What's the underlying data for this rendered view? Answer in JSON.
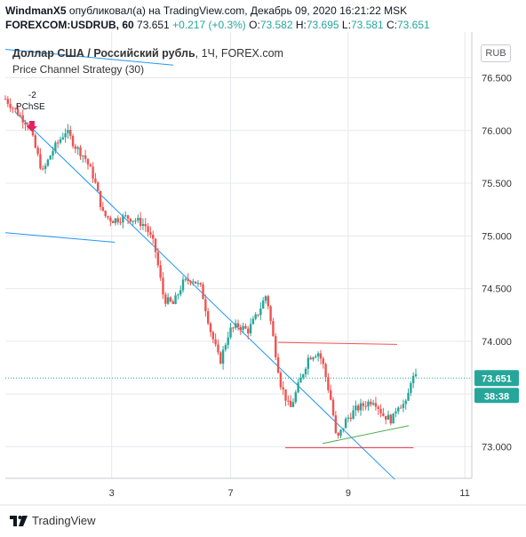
{
  "header": {
    "author": "WindmanX5",
    "published_text": "опубликовал(а) на TradingView.com, Декабрь 09, 2020 16:21:22 MSK",
    "symbol": "FOREXCOM:USDRUB, 60",
    "last": "73.651",
    "change": "+0.217 (+0.3%)",
    "o_label": "O:",
    "o_value": "73.582",
    "h_label": "H:",
    "h_value": "73.695",
    "l_label": "L:",
    "l_value": "73.581",
    "c_label": "C:",
    "c_value": "73.651"
  },
  "plot": {
    "title_bold": "Доллар США / Российский рубль",
    "title_rest": ", 1Ч, FOREX.com",
    "strategy": "Price Channel Strategy (30)",
    "currency_badge": "RUB",
    "signal_label": "PChSE",
    "signal_qty": "-2"
  },
  "footer": {
    "brand": "TradingView"
  },
  "colors": {
    "up": "#26a69a",
    "down": "#ef5350",
    "trend": "#2196f3",
    "resistance": "#ef5350",
    "support": "#f23645",
    "green_line": "#4caf50",
    "price_tag": "#26a69a",
    "grid": "#e6e8ee"
  },
  "chart_data": {
    "type": "candlestick",
    "y_axis": {
      "ticks": [
        "76.500",
        "76.000",
        "75.500",
        "75.000",
        "74.500",
        "74.000",
        "73.500",
        "73.000"
      ],
      "ylim": [
        72.7,
        76.85
      ]
    },
    "x_axis": {
      "ticks": [
        "3",
        "7",
        "9",
        "11"
      ]
    },
    "last_price": "73.651",
    "countdown": "38:38",
    "price_path": [
      [
        0.0,
        76.3
      ],
      [
        0.02,
        76.2
      ],
      [
        0.05,
        76.05
      ],
      [
        0.07,
        75.75
      ],
      [
        0.08,
        75.6
      ],
      [
        0.1,
        75.8
      ],
      [
        0.13,
        76.0
      ],
      [
        0.15,
        75.85
      ],
      [
        0.17,
        75.75
      ],
      [
        0.19,
        75.55
      ],
      [
        0.21,
        75.2
      ],
      [
        0.23,
        75.15
      ],
      [
        0.26,
        75.18
      ],
      [
        0.28,
        75.15
      ],
      [
        0.3,
        75.1
      ],
      [
        0.32,
        74.9
      ],
      [
        0.34,
        74.4
      ],
      [
        0.36,
        74.35
      ],
      [
        0.38,
        74.55
      ],
      [
        0.4,
        74.6
      ],
      [
        0.42,
        74.5
      ],
      [
        0.44,
        74.1
      ],
      [
        0.46,
        73.8
      ],
      [
        0.48,
        74.1
      ],
      [
        0.5,
        74.15
      ],
      [
        0.52,
        74.1
      ],
      [
        0.54,
        74.25
      ],
      [
        0.56,
        74.45
      ],
      [
        0.57,
        74.15
      ],
      [
        0.59,
        73.6
      ],
      [
        0.61,
        73.35
      ],
      [
        0.63,
        73.6
      ],
      [
        0.65,
        73.85
      ],
      [
        0.67,
        73.9
      ],
      [
        0.68,
        73.8
      ],
      [
        0.7,
        73.4
      ],
      [
        0.71,
        73.05
      ],
      [
        0.73,
        73.25
      ],
      [
        0.75,
        73.35
      ],
      [
        0.77,
        73.4
      ],
      [
        0.79,
        73.45
      ],
      [
        0.81,
        73.3
      ],
      [
        0.83,
        73.25
      ],
      [
        0.84,
        73.4
      ],
      [
        0.86,
        73.4
      ],
      [
        0.87,
        73.65
      ],
      [
        0.88,
        73.65
      ]
    ]
  }
}
